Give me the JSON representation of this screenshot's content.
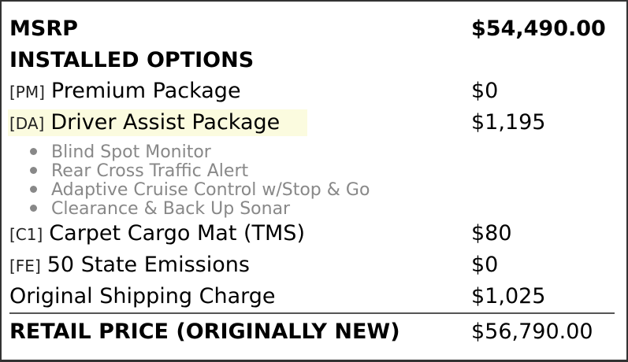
{
  "msrp": {
    "label": "MSRP",
    "price": "$54,490.00"
  },
  "installed_options_heading": "INSTALLED OPTIONS",
  "options": [
    {
      "code": "[PM]",
      "name": "Premium Package",
      "price": "$0"
    },
    {
      "code": "[DA]",
      "name": "Driver Assist Package",
      "price": "$1,195",
      "features": [
        "Blind Spot Monitor",
        "Rear Cross Traffic Alert",
        "Adaptive Cruise Control w/Stop & Go",
        "Clearance & Back Up Sonar"
      ]
    },
    {
      "code": "[C1]",
      "name": "Carpet Cargo Mat (TMS)",
      "price": "$80"
    },
    {
      "code": "[FE]",
      "name": "50 State Emissions",
      "price": "$0"
    }
  ],
  "shipping": {
    "label": "Original Shipping Charge",
    "price": "$1,025"
  },
  "retail": {
    "label": "RETAIL PRICE (ORIGINALLY NEW)",
    "price": "$56,790.00"
  },
  "colors": {
    "highlight": "#fbfbdf",
    "feature_text": "#888888"
  }
}
